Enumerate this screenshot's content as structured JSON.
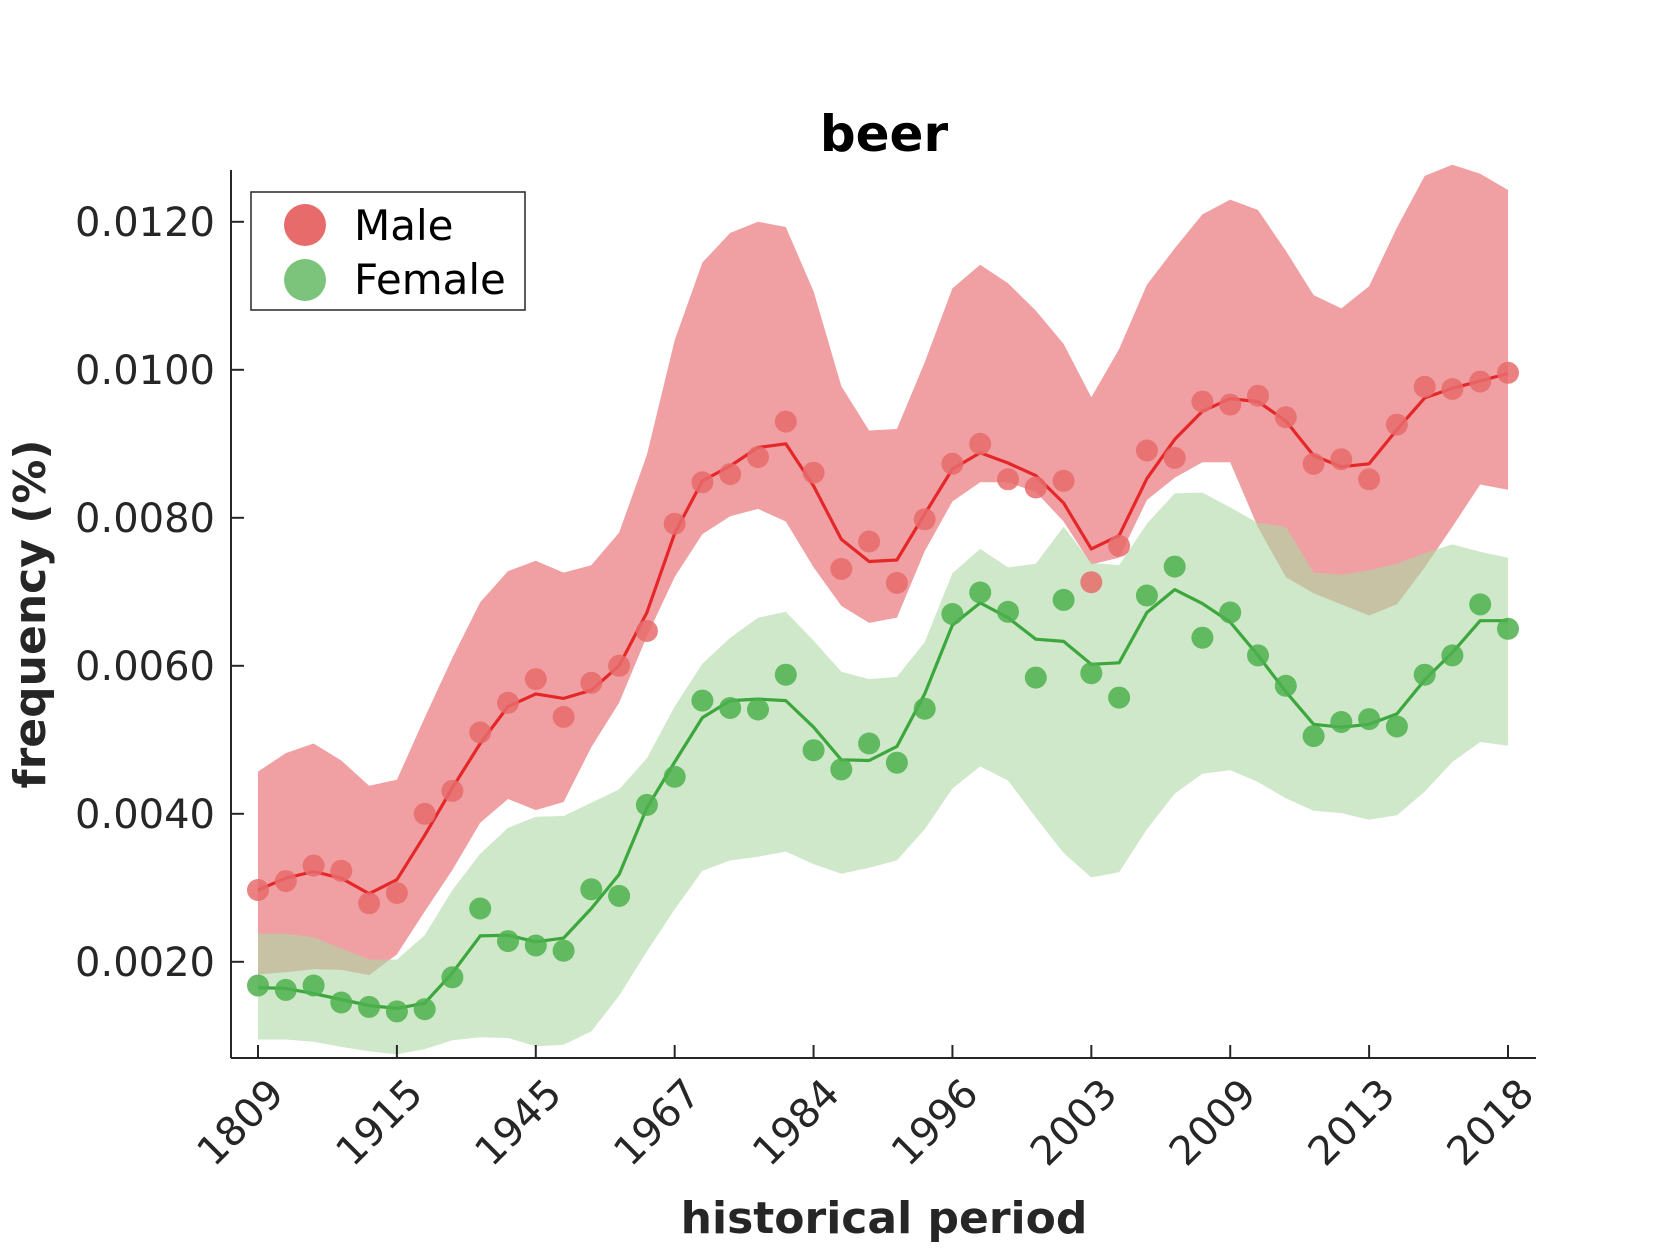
{
  "chart_data": {
    "type": "line",
    "title": "beer",
    "xlabel": "historical period",
    "ylabel": "frequency (%)",
    "ylim": [
      0.0007,
      0.0127
    ],
    "grid": false,
    "legend_position": "top-left",
    "x_tick_labels": [
      "1809",
      "1915",
      "1945",
      "1967",
      "1984",
      "1996",
      "2003",
      "2009",
      "2013",
      "2018"
    ],
    "y_tick_labels": [
      "0.0020",
      "0.0040",
      "0.0060",
      "0.0080",
      "0.0100",
      "0.0120"
    ],
    "y_ticks": [
      0.002,
      0.004,
      0.006,
      0.008,
      0.01,
      0.012
    ],
    "series": [
      {
        "name": "Male",
        "color": "#e41a1c",
        "marker_color": "#e86b6b",
        "band_color": "#f0a0a3",
        "points": [
          0.00297,
          0.00309,
          0.0033,
          0.00323,
          0.00279,
          0.00293,
          0.004,
          0.00431,
          0.0051,
          0.0055,
          0.00582,
          0.00531,
          0.00577,
          0.006,
          0.00647,
          0.00792,
          0.00848,
          0.00859,
          0.00882,
          0.0093,
          0.00861,
          0.00731,
          0.00768,
          0.00712,
          0.00798,
          0.00873,
          0.009,
          0.00852,
          0.00841,
          0.0085,
          0.00713,
          0.00762,
          0.00891,
          0.00881,
          0.00957,
          0.00953,
          0.00965,
          0.00936,
          0.00873,
          0.00879,
          0.00852,
          0.00926,
          0.00977,
          0.00974,
          0.00984,
          0.00996
        ],
        "line": [
          0.00297,
          0.00313,
          0.00322,
          0.00313,
          0.00292,
          0.00311,
          0.00371,
          0.00435,
          0.00495,
          0.00545,
          0.00562,
          0.00556,
          0.00567,
          0.006,
          0.00672,
          0.00779,
          0.0085,
          0.0087,
          0.00895,
          0.009,
          0.00843,
          0.00771,
          0.00741,
          0.00743,
          0.00805,
          0.00866,
          0.00888,
          0.00874,
          0.00857,
          0.0082,
          0.00758,
          0.00776,
          0.00853,
          0.00906,
          0.00944,
          0.00961,
          0.00957,
          0.00931,
          0.00884,
          0.00869,
          0.00873,
          0.00919,
          0.00962,
          0.00975,
          0.00985,
          0.00995
        ],
        "upper": [
          0.00457,
          0.00482,
          0.00495,
          0.00472,
          0.00438,
          0.00446,
          0.0053,
          0.00611,
          0.00686,
          0.00728,
          0.00742,
          0.00726,
          0.00736,
          0.0078,
          0.00885,
          0.0104,
          0.01145,
          0.01185,
          0.012,
          0.01193,
          0.01106,
          0.00978,
          0.00918,
          0.0092,
          0.0101,
          0.0111,
          0.01142,
          0.01117,
          0.0108,
          0.01035,
          0.00963,
          0.01028,
          0.01115,
          0.01164,
          0.0121,
          0.0123,
          0.01216,
          0.01161,
          0.01101,
          0.01083,
          0.01113,
          0.01192,
          0.01262,
          0.01277,
          0.01265,
          0.01243
        ],
        "lower": [
          0.00183,
          0.00186,
          0.0019,
          0.00189,
          0.00182,
          0.0021,
          0.00268,
          0.00324,
          0.00388,
          0.0042,
          0.00405,
          0.00416,
          0.0049,
          0.0055,
          0.0064,
          0.0072,
          0.00778,
          0.00802,
          0.00812,
          0.00795,
          0.00733,
          0.00681,
          0.00658,
          0.00665,
          0.00755,
          0.00822,
          0.00848,
          0.00848,
          0.00835,
          0.00795,
          0.00737,
          0.00746,
          0.00824,
          0.00854,
          0.00875,
          0.00875,
          0.00787,
          0.0072,
          0.00698,
          0.00683,
          0.00668,
          0.00683,
          0.00733,
          0.00788,
          0.00845,
          0.00838
        ]
      },
      {
        "name": "Female",
        "color": "#2ca02c",
        "marker_color": "#4db04d",
        "band_color": "#add9a5",
        "points": [
          0.00168,
          0.00162,
          0.00168,
          0.00145,
          0.00139,
          0.00133,
          0.00136,
          0.00179,
          0.00272,
          0.00228,
          0.00222,
          0.00215,
          0.00298,
          0.00289,
          0.00412,
          0.0045,
          0.00553,
          0.00543,
          0.00541,
          0.00588,
          0.00486,
          0.0046,
          0.00495,
          0.00469,
          0.00542,
          0.0067,
          0.00699,
          0.00673,
          0.00584,
          0.00689,
          0.0059,
          0.00557,
          0.00695,
          0.00734,
          0.00638,
          0.00672,
          0.00614,
          0.00573,
          0.00505,
          0.00524,
          0.00528,
          0.00518,
          0.00588,
          0.00614,
          0.00683,
          0.0065
        ],
        "line": [
          0.00165,
          0.00164,
          0.00157,
          0.00149,
          0.00141,
          0.00137,
          0.00144,
          0.00185,
          0.00235,
          0.00236,
          0.00227,
          0.00232,
          0.00272,
          0.00318,
          0.00408,
          0.0047,
          0.0053,
          0.00553,
          0.00555,
          0.00553,
          0.00517,
          0.00473,
          0.00472,
          0.00491,
          0.00562,
          0.00655,
          0.00685,
          0.00665,
          0.00636,
          0.00633,
          0.00602,
          0.00604,
          0.00672,
          0.00703,
          0.00684,
          0.00659,
          0.00614,
          0.00565,
          0.00521,
          0.00517,
          0.00521,
          0.00535,
          0.00581,
          0.00618,
          0.00661,
          0.00661
        ],
        "upper": [
          0.00238,
          0.00238,
          0.00233,
          0.00218,
          0.00203,
          0.00203,
          0.00236,
          0.00297,
          0.00346,
          0.00381,
          0.00396,
          0.00397,
          0.00415,
          0.00433,
          0.00475,
          0.00545,
          0.00603,
          0.00638,
          0.00665,
          0.00673,
          0.00634,
          0.00592,
          0.00582,
          0.00585,
          0.00632,
          0.00725,
          0.00758,
          0.00733,
          0.00738,
          0.00788,
          0.00739,
          0.00736,
          0.00792,
          0.00833,
          0.00834,
          0.00814,
          0.00793,
          0.00788,
          0.00726,
          0.00723,
          0.00729,
          0.00738,
          0.00752,
          0.00764,
          0.00754,
          0.00746
        ],
        "lower": [
          0.00095,
          0.00095,
          0.00092,
          0.00085,
          0.00079,
          0.00075,
          0.00082,
          0.00094,
          0.00098,
          0.00097,
          0.00086,
          0.00088,
          0.00106,
          0.00154,
          0.00214,
          0.00271,
          0.00323,
          0.00337,
          0.00342,
          0.00349,
          0.00332,
          0.00319,
          0.00327,
          0.00337,
          0.00379,
          0.00434,
          0.00464,
          0.00445,
          0.00395,
          0.00347,
          0.00314,
          0.00321,
          0.00379,
          0.00427,
          0.00454,
          0.00459,
          0.00443,
          0.00421,
          0.00404,
          0.00401,
          0.00392,
          0.00398,
          0.0043,
          0.0047,
          0.00497,
          0.00492
        ]
      }
    ]
  }
}
